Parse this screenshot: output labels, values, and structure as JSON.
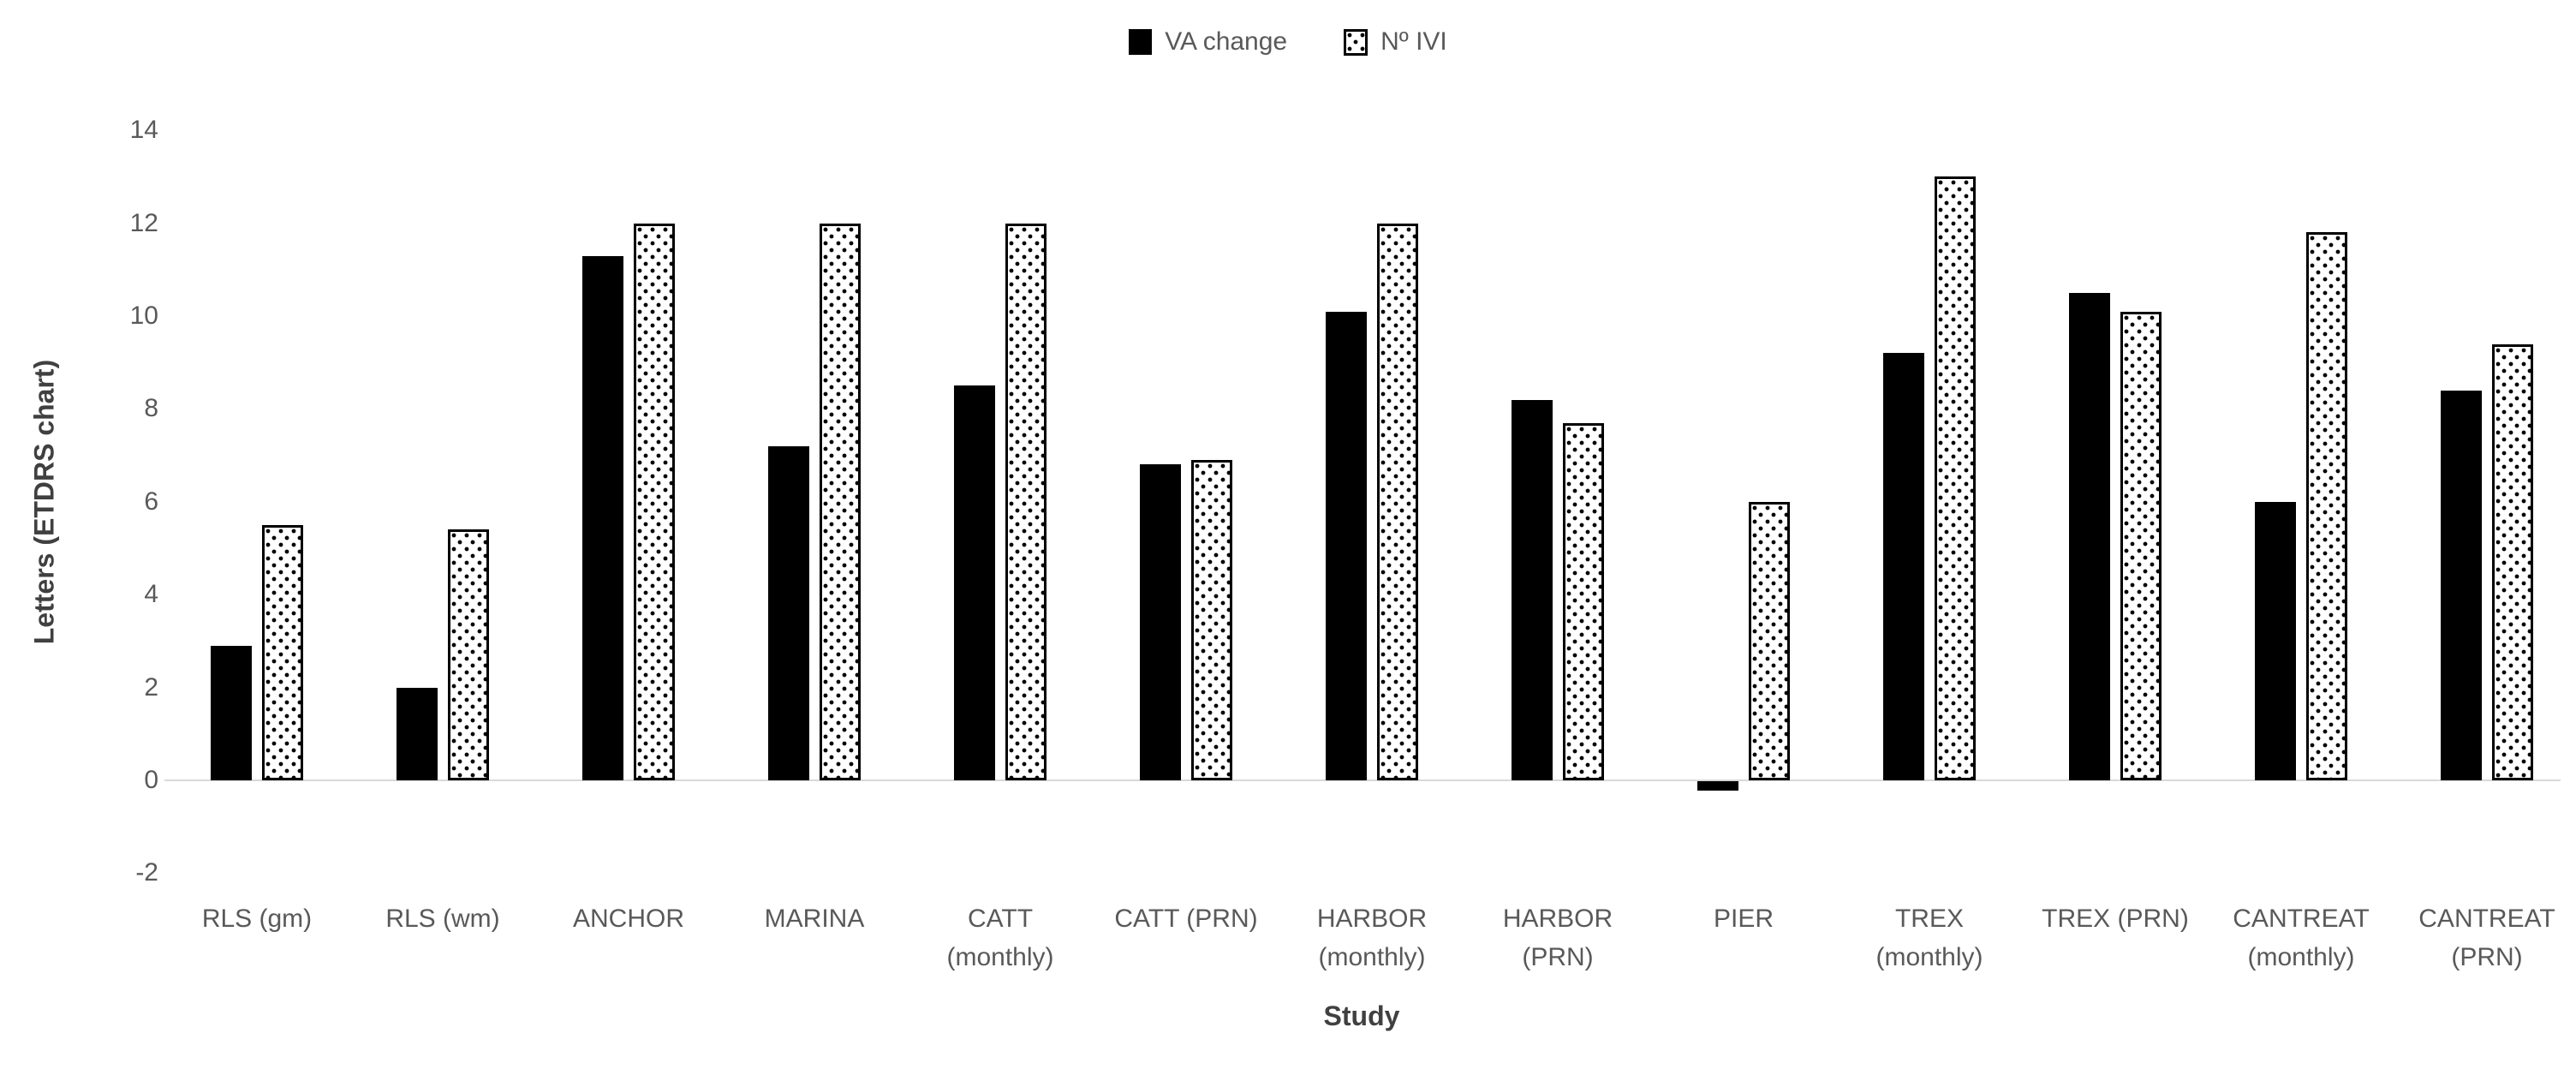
{
  "page": {
    "background": "#ffffff"
  },
  "chart_data": {
    "type": "bar",
    "title": "",
    "xlabel": "Study",
    "ylabel": "Letters (ETDRS chart)",
    "ylim": [
      -2,
      14
    ],
    "ytick_interval": 2,
    "ytick_labels": [
      "14",
      "12",
      "10",
      "8",
      "6",
      "4",
      "2",
      "0",
      "-2"
    ],
    "grid": false,
    "legend_position": "top-center",
    "categories": [
      "RLS (gm)",
      "RLS (wm)",
      "ANCHOR",
      "MARINA",
      "CATT (monthly)",
      "CATT (PRN)",
      "HARBOR (monthly)",
      "HARBOR (PRN)",
      "PIER",
      "TREX (monthly)",
      "TREX (PRN)",
      "CANTREAT (monthly)",
      "CANTREAT (PRN)"
    ],
    "category_label_lines": [
      [
        "RLS (gm)"
      ],
      [
        "RLS (wm)"
      ],
      [
        "ANCHOR"
      ],
      [
        "MARINA"
      ],
      [
        "CATT",
        "(monthly)"
      ],
      [
        "CATT (PRN)"
      ],
      [
        "HARBOR",
        "(monthly)"
      ],
      [
        "HARBOR",
        "(PRN)"
      ],
      [
        "PIER"
      ],
      [
        "TREX",
        "(monthly)"
      ],
      [
        "TREX (PRN)"
      ],
      [
        "CANTREAT",
        "(monthly)"
      ],
      [
        "CANTREAT",
        "(PRN)"
      ]
    ],
    "series": [
      {
        "name": "VA change",
        "pattern": "solid-black",
        "values": [
          2.9,
          2.0,
          11.3,
          7.2,
          8.5,
          6.8,
          10.1,
          8.2,
          -0.2,
          9.2,
          10.5,
          6.0,
          8.4
        ]
      },
      {
        "name": "Nº IVI",
        "pattern": "dotted",
        "values": [
          5.5,
          5.4,
          12.0,
          12.0,
          12.0,
          6.9,
          12.0,
          7.7,
          6.0,
          13.0,
          10.1,
          11.8,
          9.4
        ]
      }
    ],
    "colors": {
      "series_va_change": "#000000",
      "series_n_ivi_fill": "#ffffff",
      "series_n_ivi_dots": "#000000",
      "axis_line": "#d9d9d9",
      "tick_text": "#595959",
      "axis_title_text": "#404040"
    }
  }
}
